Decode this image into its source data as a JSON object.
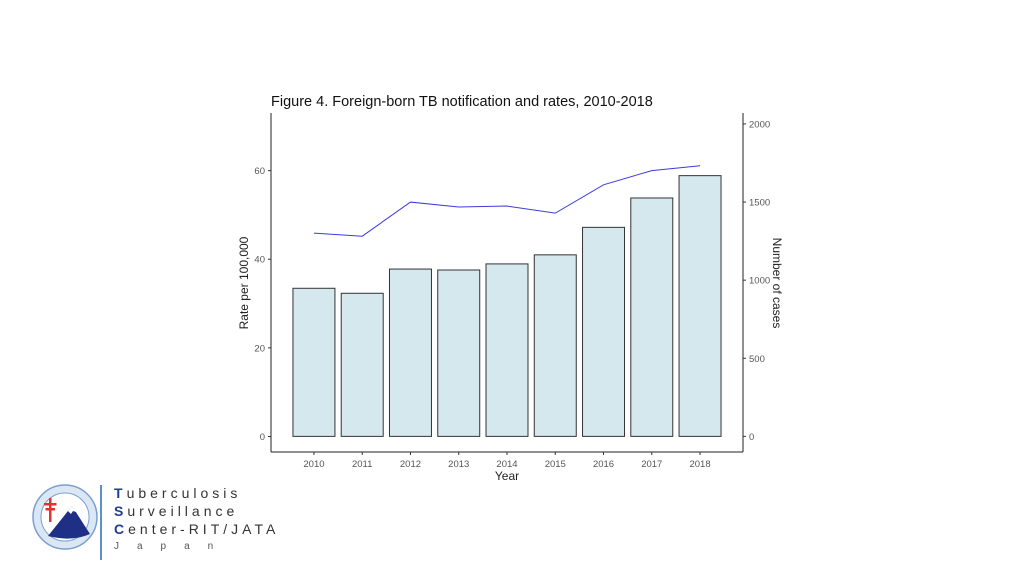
{
  "chart_data": {
    "type": "bar",
    "title": "Figure 4. Foreign-born TB notification and rates, 2010-2018",
    "xlabel": "Year",
    "ylabel": "Rate per 100,000",
    "y2label": "Number of cases",
    "categories": [
      "2010",
      "2011",
      "2012",
      "2013",
      "2014",
      "2015",
      "2016",
      "2017",
      "2018"
    ],
    "series": [
      {
        "name": "Number of cases",
        "type": "bar",
        "axis": "right",
        "values": [
          948,
          916,
          1071,
          1065,
          1104,
          1162,
          1338,
          1526,
          1669
        ]
      },
      {
        "name": "Rate per 100,000",
        "type": "line",
        "axis": "left",
        "values": [
          45.9,
          45.2,
          52.9,
          51.8,
          52.0,
          50.4,
          56.8,
          60.0,
          61.1
        ]
      }
    ],
    "ylim": [
      -3.5,
      73
    ],
    "y2lim": [
      -100,
      2070
    ],
    "yticks": [
      "0",
      "20",
      "40",
      "60"
    ],
    "y2ticks": [
      "0",
      "500",
      "1000",
      "1500",
      "2000"
    ],
    "grid": false,
    "colors": {
      "bar_fill": "#d5e8ee",
      "bar_stroke": "#333333",
      "line": "#3b3bdc"
    }
  },
  "logo": {
    "line1_cap": "T",
    "line1_rest": "uberculosis",
    "line2_cap": "S",
    "line2_rest": "urveillance",
    "line3_cap": "C",
    "line3_rest": "enter-RIT/JATA",
    "line4": "Japan"
  }
}
